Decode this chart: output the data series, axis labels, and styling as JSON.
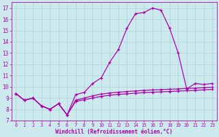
{
  "xlabel": "Windchill (Refroidissement éolien,°C)",
  "background_color": "#cce9ed",
  "grid_color": "#aad4da",
  "line_color": "#aa00aa",
  "x": [
    0,
    1,
    2,
    3,
    4,
    5,
    6,
    7,
    8,
    9,
    10,
    11,
    12,
    13,
    14,
    15,
    16,
    17,
    18,
    19,
    20,
    21,
    22,
    23
  ],
  "y_main": [
    9.4,
    8.8,
    9.0,
    8.3,
    8.0,
    8.5,
    7.5,
    9.3,
    9.5,
    10.3,
    10.8,
    12.2,
    13.3,
    15.2,
    16.5,
    16.6,
    17.0,
    16.8,
    15.2,
    13.0,
    9.8,
    10.3,
    10.2,
    10.3
  ],
  "y_line2": [
    9.4,
    8.8,
    9.0,
    8.3,
    8.0,
    8.5,
    7.5,
    8.8,
    9.0,
    9.2,
    9.35,
    9.45,
    9.52,
    9.58,
    9.63,
    9.68,
    9.72,
    9.75,
    9.78,
    9.81,
    9.85,
    9.88,
    9.93,
    9.96
  ],
  "y_line3": [
    9.4,
    8.8,
    9.0,
    8.3,
    8.0,
    8.5,
    7.5,
    8.7,
    8.85,
    9.0,
    9.15,
    9.25,
    9.32,
    9.38,
    9.43,
    9.48,
    9.52,
    9.55,
    9.58,
    9.62,
    9.65,
    9.68,
    9.73,
    9.77
  ],
  "ylim": [
    7,
    17.5
  ],
  "xlim": [
    -0.5,
    23.5
  ],
  "yticks": [
    7,
    8,
    9,
    10,
    11,
    12,
    13,
    14,
    15,
    16,
    17
  ],
  "xticks": [
    0,
    1,
    2,
    3,
    4,
    5,
    6,
    7,
    8,
    9,
    10,
    11,
    12,
    13,
    14,
    15,
    16,
    17,
    18,
    19,
    20,
    21,
    22,
    23
  ],
  "xtick_labels": [
    "0",
    "1",
    "2",
    "3",
    "4",
    "5",
    "6",
    "7",
    "8",
    "9",
    "10",
    "11",
    "12",
    "13",
    "14",
    "15",
    "16",
    "17",
    "18",
    "19",
    "20",
    "21",
    "22",
    "23"
  ]
}
